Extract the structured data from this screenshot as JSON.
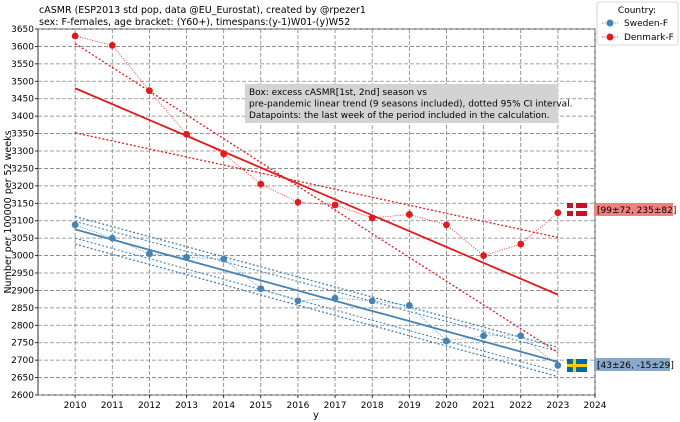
{
  "chart_data": {
    "type": "line",
    "title_line1": "cASMR (ESP2013 std pop, data @EU_Eurostat), created by @rpezer1",
    "title_line2": "sex: F-females, age bracket: (Y60+), timespans:(y-1)W01-(y)W52",
    "xlabel": "y",
    "ylabel": "Number per 100000 per 52 weeks",
    "xlim": [
      2009,
      2024
    ],
    "ylim": [
      2600,
      3650
    ],
    "x_ticks": [
      2010,
      2011,
      2012,
      2013,
      2014,
      2015,
      2016,
      2017,
      2018,
      2019,
      2020,
      2021,
      2022,
      2023,
      2024
    ],
    "y_ticks": [
      2600,
      2650,
      2700,
      2750,
      2800,
      2850,
      2900,
      2950,
      3000,
      3050,
      3100,
      3150,
      3200,
      3250,
      3300,
      3350,
      3400,
      3450,
      3500,
      3550,
      3600,
      3650
    ],
    "grid": true,
    "legend": {
      "title": "Country:",
      "position": "top-right-outside",
      "entries": [
        "Sweden-F",
        "Denmark-F"
      ]
    },
    "annotation_box": [
      "Box: excess cASMR[1st, 2nd] season vs",
      "pre-pandemic linear trend (9 seasons included), dotted 95% CI interval.",
      "Datapoints: the last week of the period included in the calculation."
    ],
    "series": [
      {
        "name": "Sweden-F",
        "color": "#4682b4",
        "x": [
          2010,
          2011,
          2012,
          2013,
          2014,
          2015,
          2016,
          2017,
          2018,
          2019,
          2020,
          2021,
          2022,
          2023
        ],
        "values": [
          3088,
          3050,
          3005,
          2995,
          2990,
          2905,
          2870,
          2878,
          2870,
          2857,
          2755,
          2770,
          2770,
          2685
        ],
        "trend": {
          "x": [
            2010,
            2023
          ],
          "y": [
            3075,
            2695
          ]
        },
        "ci_upper": {
          "x": [
            2010,
            2023
          ],
          "y": [
            3112,
            2737
          ]
        },
        "ci_lower": {
          "x": [
            2010,
            2023
          ],
          "y": [
            3033,
            2653
          ]
        },
        "ci_wide_upper": {
          "x": [
            2010,
            2023
          ],
          "y": [
            3098,
            2725
          ]
        },
        "ci_wide_lower": {
          "x": [
            2010,
            2023
          ],
          "y": [
            3050,
            2667
          ]
        },
        "box_label": "[43±26, -15±29]",
        "flag": "sweden-flag"
      },
      {
        "name": "Denmark-F",
        "color": "#e31a1c",
        "x": [
          2010,
          2011,
          2012,
          2013,
          2014,
          2015,
          2016,
          2017,
          2018,
          2019,
          2020,
          2021,
          2022,
          2023
        ],
        "values": [
          3630,
          3603,
          3473,
          3348,
          3292,
          3205,
          3153,
          3145,
          3108,
          3118,
          3088,
          3000,
          3033,
          3123
        ],
        "trend": {
          "x": [
            2010,
            2023
          ],
          "y": [
            3480,
            2888
          ]
        },
        "ci_upper": {
          "x": [
            2010,
            2023
          ],
          "y": [
            3352,
            3052
          ]
        },
        "ci_lower": {
          "x": [
            2010,
            2023
          ],
          "y": [
            3608,
            2722
          ]
        },
        "box_label": "[99±72, 235±82]",
        "flag": "denmark-flag"
      }
    ]
  }
}
